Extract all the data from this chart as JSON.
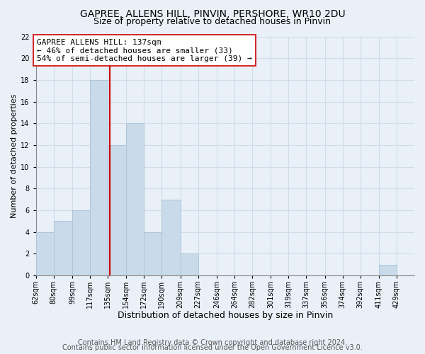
{
  "title": "GAPREE, ALLENS HILL, PINVIN, PERSHORE, WR10 2DU",
  "subtitle": "Size of property relative to detached houses in Pinvin",
  "xlabel": "Distribution of detached houses by size in Pinvin",
  "ylabel": "Number of detached properties",
  "bar_values": [
    4,
    5,
    6,
    18,
    12,
    14,
    4,
    7,
    2,
    0,
    0,
    0,
    0,
    0,
    0,
    0,
    0,
    0,
    0,
    1,
    0
  ],
  "bin_edges": [
    62,
    80,
    99,
    117,
    135,
    154,
    172,
    190,
    209,
    227,
    246,
    264,
    282,
    301,
    319,
    337,
    356,
    374,
    392,
    411,
    429,
    447
  ],
  "x_tick_labels": [
    "62sqm",
    "80sqm",
    "99sqm",
    "117sqm",
    "135sqm",
    "154sqm",
    "172sqm",
    "190sqm",
    "209sqm",
    "227sqm",
    "246sqm",
    "264sqm",
    "282sqm",
    "301sqm",
    "319sqm",
    "337sqm",
    "356sqm",
    "374sqm",
    "392sqm",
    "411sqm",
    "429sqm"
  ],
  "bar_color": "#c9daea",
  "bar_edgecolor": "#aec6d8",
  "vline_x": 137,
  "vline_color": "#cc0000",
  "annotation_line1": "GAPREE ALLENS HILL: 137sqm",
  "annotation_line2": "← 46% of detached houses are smaller (33)",
  "annotation_line3": "54% of semi-detached houses are larger (39) →",
  "annotation_box_color": "#ffffff",
  "annotation_box_edgecolor": "#cc0000",
  "ylim": [
    0,
    22
  ],
  "yticks": [
    0,
    2,
    4,
    6,
    8,
    10,
    12,
    14,
    16,
    18,
    20,
    22
  ],
  "grid_color": "#d0dce8",
  "background_color": "#eaf0f8",
  "footer_line1": "Contains HM Land Registry data © Crown copyright and database right 2024.",
  "footer_line2": "Contains public sector information licensed under the Open Government Licence v3.0.",
  "title_fontsize": 10,
  "subtitle_fontsize": 9,
  "xlabel_fontsize": 9,
  "ylabel_fontsize": 8,
  "annotation_fontsize": 8,
  "tick_fontsize": 7,
  "footer_fontsize": 7
}
